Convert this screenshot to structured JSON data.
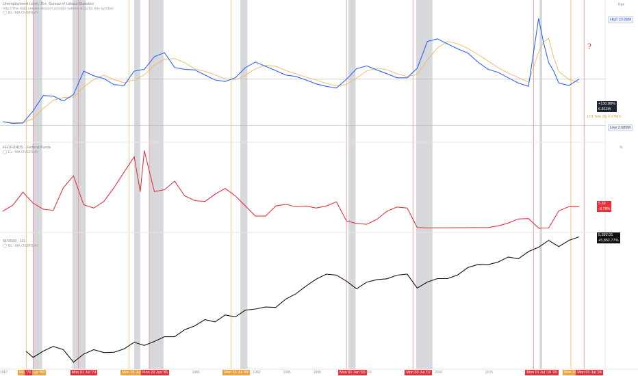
{
  "panes": [
    {
      "legend_title": "Unemployment Level, 16+, Bureau of Labour Statistics",
      "legend_sub": "http://The data vendor doesn't provide volume data for this symbol.",
      "legend_note": "◯ EL: MA OVERLAY"
    },
    {
      "legend_title": "FEDFUNDS · Federal Funds",
      "legend_sub": "◯ EL: MA OVERLAY"
    },
    {
      "legend_title": "SPX500 · 1D",
      "legend_sub": "◯ EL: MA OVERLAY"
    }
  ],
  "right_axis": {
    "top_label": "Rge",
    "high_label": "High",
    "high_value": "23.09M",
    "low_label": "Low",
    "low_value": "2.685M",
    "pane1_change": "+130.88%",
    "pane1_value": "6.811M",
    "ma_label": "170 Tmk (5) 6.07MX",
    "pane2_value": "5.33",
    "pane2_change": "-8.78%",
    "pane3_value": "5,392.01",
    "pane3_change": "+5,852.77%",
    "pane2_percent": "%"
  },
  "question_mark": "?",
  "bottom_dates": [
    {
      "label": "Mon 28 Apr '69",
      "year": 1969.32,
      "kind": "orange"
    },
    {
      "label": "'70",
      "year": 1970.0,
      "kind": "red"
    },
    {
      "label": "Mon 01 Jul '74",
      "year": 1974.5,
      "kind": "red"
    },
    {
      "label": "Mon 25 Jun",
      "year": 1979.48,
      "kind": "orange"
    },
    {
      "label": "Mon 29 Jun '81",
      "year": 1981.49,
      "kind": "red"
    },
    {
      "label": "Mon 31 Jul '89",
      "year": 1989.58,
      "kind": "orange"
    },
    {
      "label": "Mon 01 Jan '01",
      "year": 2001.0,
      "kind": "red"
    },
    {
      "label": "Mon 30 Jul '07",
      "year": 2007.58,
      "kind": "red"
    },
    {
      "label": "Mon 01 Jul '19 '20",
      "year": 2019.5,
      "kind": "red"
    },
    {
      "label": "Mon 26",
      "year": 2023.2,
      "kind": "orange"
    },
    {
      "label": "Mon 01 Jul '24",
      "year": 2024.5,
      "kind": "red"
    }
  ],
  "year_ticks": [
    "1967",
    "'70",
    "1986",
    "1992",
    "1995",
    "1998",
    "2003",
    "2010",
    "2015",
    "2025"
  ],
  "chart_data": [
    {
      "type": "line",
      "title": "Unemployment Level, 16+, Bureau of Labour Statistics",
      "scale": "log",
      "series": [
        {
          "values": [
            [
              1967,
              2.9
            ],
            [
              1968,
              2.8
            ],
            [
              1969,
              2.83
            ],
            [
              1970,
              3.6
            ],
            [
              1971,
              4.9
            ],
            [
              1972,
              4.85
            ],
            [
              1973,
              4.4
            ],
            [
              1974,
              5.0
            ],
            [
              1975,
              8.0
            ],
            [
              1976,
              7.3
            ],
            [
              1977,
              6.9
            ],
            [
              1978,
              6.1
            ],
            [
              1979,
              6.0
            ],
            [
              1980,
              8.0
            ],
            [
              1981,
              8.3
            ],
            [
              1982,
              10.7
            ],
            [
              1983,
              11.6
            ],
            [
              1984,
              8.6
            ],
            [
              1985,
              8.3
            ],
            [
              1986,
              8.2
            ],
            [
              1987,
              7.4
            ],
            [
              1988,
              6.7
            ],
            [
              1989,
              6.5
            ],
            [
              1990,
              7.0
            ],
            [
              1991,
              8.6
            ],
            [
              1992,
              9.6
            ],
            [
              1993,
              8.8
            ],
            [
              1994,
              8.1
            ],
            [
              1995,
              7.4
            ],
            [
              1996,
              7.2
            ],
            [
              1997,
              6.7
            ],
            [
              1998,
              6.2
            ],
            [
              1999,
              5.9
            ],
            [
              2000,
              5.7
            ],
            [
              2001,
              6.8
            ],
            [
              2002,
              8.4
            ],
            [
              2003,
              8.9
            ],
            [
              2004,
              8.2
            ],
            [
              2005,
              7.6
            ],
            [
              2006,
              7.0
            ],
            [
              2007,
              7.0
            ],
            [
              2008,
              8.5
            ],
            [
              2009,
              14.5
            ],
            [
              2010,
              15.3
            ],
            [
              2011,
              13.8
            ],
            [
              2012,
              12.5
            ],
            [
              2013,
              11.5
            ],
            [
              2014,
              9.6
            ],
            [
              2015,
              8.3
            ],
            [
              2016,
              7.8
            ],
            [
              2017,
              7.0
            ],
            [
              2018,
              6.3
            ],
            [
              2019,
              5.9
            ],
            [
              2020,
              23.1
            ],
            [
              2020.5,
              14.0
            ],
            [
              2021,
              9.5
            ],
            [
              2021.5,
              8.0
            ],
            [
              2022,
              6.3
            ],
            [
              2023,
              6.0
            ],
            [
              2024,
              6.81
            ]
          ]
        }
      ]
    },
    {
      "type": "line",
      "title": "FEDFUNDS · Federal Funds",
      "series": [
        {
          "values": [
            [
              1967,
              4.2
            ],
            [
              1968,
              5.7
            ],
            [
              1969,
              8.9
            ],
            [
              1970,
              6.2
            ],
            [
              1971,
              4.7
            ],
            [
              1972,
              4.4
            ],
            [
              1973,
              10.0
            ],
            [
              1974,
              12.9
            ],
            [
              1975,
              5.8
            ],
            [
              1976,
              5.0
            ],
            [
              1977,
              6.6
            ],
            [
              1978,
              10.0
            ],
            [
              1979,
              13.8
            ],
            [
              1980,
              17.6
            ],
            [
              1980.6,
              9.0
            ],
            [
              1981,
              19.1
            ],
            [
              1982,
              9.0
            ],
            [
              1983,
              9.5
            ],
            [
              1984,
              11.6
            ],
            [
              1985,
              8.0
            ],
            [
              1986,
              6.8
            ],
            [
              1987,
              6.6
            ],
            [
              1988,
              8.4
            ],
            [
              1989,
              9.8
            ],
            [
              1990,
              8.0
            ],
            [
              1991,
              5.5
            ],
            [
              1992,
              3.0
            ],
            [
              1993,
              3.0
            ],
            [
              1994,
              5.5
            ],
            [
              1995,
              5.9
            ],
            [
              1996,
              5.3
            ],
            [
              1997,
              5.5
            ],
            [
              1998,
              5.0
            ],
            [
              1999,
              5.5
            ],
            [
              2000,
              6.5
            ],
            [
              2001,
              1.8
            ],
            [
              2002,
              1.2
            ],
            [
              2003,
              1.0
            ],
            [
              2004,
              2.2
            ],
            [
              2005,
              4.2
            ],
            [
              2006,
              5.25
            ],
            [
              2007,
              5.0
            ],
            [
              2008,
              0.2
            ],
            [
              2009,
              0.1
            ],
            [
              2015,
              0.2
            ],
            [
              2016,
              0.6
            ],
            [
              2017,
              1.3
            ],
            [
              2018,
              2.3
            ],
            [
              2019,
              2.4
            ],
            [
              2020,
              0.05
            ],
            [
              2021,
              0.08
            ],
            [
              2022,
              4.3
            ],
            [
              2023,
              5.33
            ],
            [
              2024,
              5.33
            ]
          ]
        }
      ]
    },
    {
      "type": "line",
      "title": "SPX500 · 1D",
      "scale": "log",
      "series": [
        {
          "values": [
            [
              1969.3,
              100
            ],
            [
              1970,
              80
            ],
            [
              1971,
              100
            ],
            [
              1972,
              118
            ],
            [
              1973,
              105
            ],
            [
              1974,
              68
            ],
            [
              1975,
              90
            ],
            [
              1976,
              105
            ],
            [
              1977,
              95
            ],
            [
              1978,
              96
            ],
            [
              1979,
              108
            ],
            [
              1980,
              136
            ],
            [
              1981,
              122
            ],
            [
              1982,
              140
            ],
            [
              1983,
              165
            ],
            [
              1984,
              165
            ],
            [
              1985,
              211
            ],
            [
              1986,
              242
            ],
            [
              1987,
              300
            ],
            [
              1988,
              277
            ],
            [
              1989,
              353
            ],
            [
              1990,
              330
            ],
            [
              1991,
              417
            ],
            [
              1992,
              435
            ],
            [
              1993,
              466
            ],
            [
              1994,
              459
            ],
            [
              1995,
              615
            ],
            [
              1996,
              740
            ],
            [
              1997,
              970
            ],
            [
              1998,
              1229
            ],
            [
              1999,
              1469
            ],
            [
              2000,
              1420
            ],
            [
              2001,
              1148
            ],
            [
              2002,
              880
            ],
            [
              2003,
              1111
            ],
            [
              2004,
              1211
            ],
            [
              2005,
              1248
            ],
            [
              2006,
              1418
            ],
            [
              2007,
              1468
            ],
            [
              2008,
              903
            ],
            [
              2009,
              1115
            ],
            [
              2010,
              1257
            ],
            [
              2011,
              1257
            ],
            [
              2012,
              1426
            ],
            [
              2013,
              1848
            ],
            [
              2014,
              2058
            ],
            [
              2015,
              2043
            ],
            [
              2016,
              2238
            ],
            [
              2017,
              2673
            ],
            [
              2018,
              2506
            ],
            [
              2019,
              3230
            ],
            [
              2020,
              3756
            ],
            [
              2021,
              4766
            ],
            [
              2022,
              3839
            ],
            [
              2023,
              4769
            ],
            [
              2024,
              5392
            ]
          ]
        }
      ]
    }
  ]
}
